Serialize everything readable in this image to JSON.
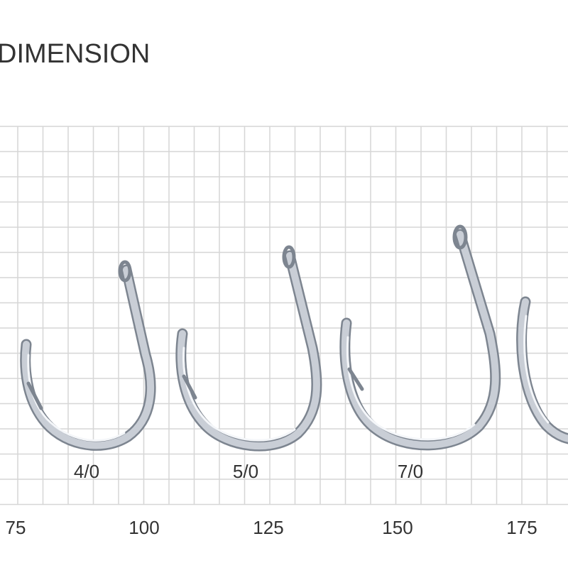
{
  "title": "DIMENSION",
  "hooks": [
    {
      "label": "4/0"
    },
    {
      "label": "5/0"
    },
    {
      "label": "7/0"
    }
  ],
  "scale_labels": [
    75,
    100,
    125,
    150,
    175
  ]
}
